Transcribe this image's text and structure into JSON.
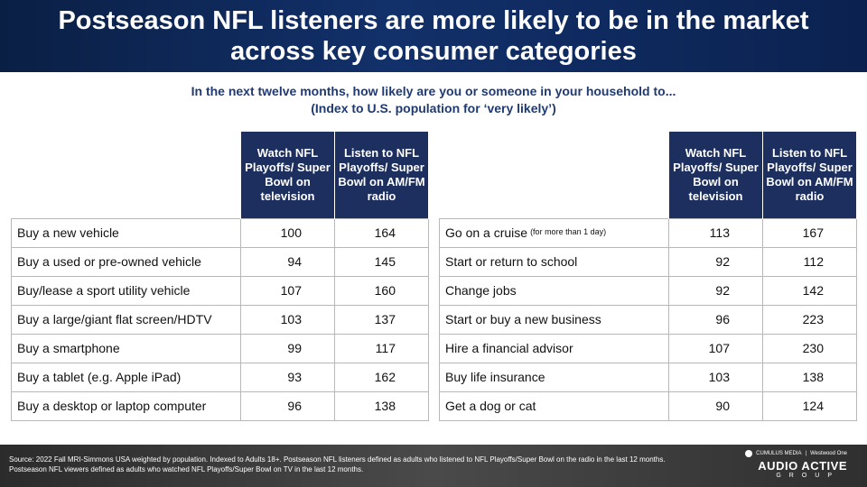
{
  "title": "Postseason NFL listeners are more likely to be in the market across key consumer categories",
  "subtitle_line1": "In the next twelve months, how likely are you or someone in your household to...",
  "subtitle_line2": "(Index to U.S. population for ‘very likely’)",
  "columns": {
    "tv": "Watch NFL Playoffs/ Super Bowl on television",
    "radio": "Listen to NFL Playoffs/ Super Bowl on AM/FM radio"
  },
  "left_rows": [
    {
      "label": "Buy a new vehicle",
      "tv": "100",
      "radio": "164"
    },
    {
      "label": "Buy a used or pre-owned vehicle",
      "tv": "94",
      "radio": "145"
    },
    {
      "label": "Buy/lease a sport utility vehicle",
      "tv": "107",
      "radio": "160"
    },
    {
      "label": "Buy a large/giant flat screen/HDTV",
      "tv": "103",
      "radio": "137"
    },
    {
      "label": "Buy a smartphone",
      "tv": "99",
      "radio": "117"
    },
    {
      "label": "Buy a tablet (e.g. Apple iPad)",
      "tv": "93",
      "radio": "162"
    },
    {
      "label": "Buy a desktop or laptop computer",
      "tv": "96",
      "radio": "138"
    }
  ],
  "right_rows": [
    {
      "label": "Go on a cruise",
      "note": "(for more than 1 day)",
      "tv": "113",
      "radio": "167"
    },
    {
      "label": "Start or return to school",
      "tv": "92",
      "radio": "112"
    },
    {
      "label": "Change jobs",
      "tv": "92",
      "radio": "142"
    },
    {
      "label": "Start or buy a new business",
      "tv": "96",
      "radio": "223"
    },
    {
      "label": "Hire a financial advisor",
      "tv": "107",
      "radio": "230"
    },
    {
      "label": "Buy life insurance",
      "tv": "103",
      "radio": "138"
    },
    {
      "label": "Get a dog or cat",
      "tv": "90",
      "radio": "124"
    }
  ],
  "source": "Source: 2022 Fall MRI-Simmons USA weighted by population. Indexed to Adults 18+. Postseason NFL listeners defined as adults who listened to NFL Playoffs/Super Bowl on the radio in the last 12 months. Postseason NFL viewers defined as adults who watched NFL Playoffs/Super Bowl on TV in the last 12 months.",
  "logo": {
    "top_left": "CUMULUS MEDIA",
    "top_right": "Westwood One",
    "main": "AUDIO ACTIVE",
    "sub": "GROUP"
  }
}
